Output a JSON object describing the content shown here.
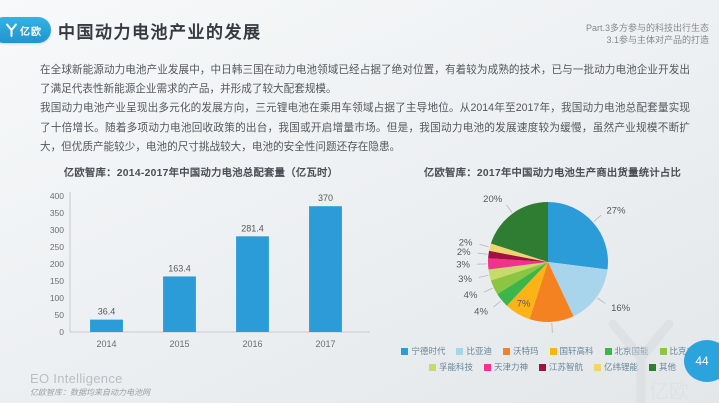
{
  "header": {
    "logo_text": "亿欧",
    "title": "中国动力电池产业的发展",
    "right_line1": "Part.3多方参与的科技出行生态",
    "right_line2": "3.1参与主体对产品的打造"
  },
  "body": {
    "paragraph1": "在全球新能源动力电池产业发展中，中日韩三国在动力电池领域已经占据了绝对位置，有着较为成熟的技术，已与一批动力电池企业开发出了满足代表性新能源企业需求的产品，并形成了较大配套规模。",
    "paragraph2": "我国动力电池产业呈现出多元化的发展方向，三元锂电池在乘用车领域占据了主导地位。从2014年至2017年，我国动力电池总配套量实现了十倍增长。随着多项动力电池回收政策的出台，我国或开启增量市场。但是，我国动力电池的发展速度较为缓慢，虽然产业规模不断扩大，但优质产能较少，电池的尺寸挑战较大，电池的安全性问题还存在隐患。"
  },
  "chart_data": [
    {
      "type": "bar",
      "title": "亿欧智库：2014-2017年中国动力电池总配套量（亿瓦时）",
      "categories": [
        "2014",
        "2015",
        "2016",
        "2017"
      ],
      "values": [
        36.4,
        163.4,
        281.4,
        370
      ],
      "value_labels": [
        "36.4",
        "163.4",
        "281.4",
        "370"
      ],
      "ylim": [
        0,
        400
      ],
      "ytick_step": 50,
      "bar_color": "#2B9CD8",
      "grid": false,
      "xlabel": "",
      "ylabel": ""
    },
    {
      "type": "pie",
      "title": "亿欧智库：2017年中国动力电池生产商出货量统计占比",
      "start_angle_deg": 0,
      "direction": "clockwise",
      "legend_position": "bottom",
      "slices": [
        {
          "label": "宁德时代",
          "value": 27,
          "color": "#2B9CD8",
          "label_pos": "out"
        },
        {
          "label": "比亚迪",
          "value": 16,
          "color": "#A9D5EC",
          "label_pos": "out"
        },
        {
          "label": "沃特玛",
          "value": 12,
          "color": "#F58220",
          "label_pos": "out"
        },
        {
          "label": "国轩高科",
          "value": 7,
          "color": "#FBB316",
          "label_pos": "in"
        },
        {
          "label": "北京国能",
          "value": 4,
          "color": "#3CB54A",
          "label_pos": "out"
        },
        {
          "label": "比克电池",
          "value": 4,
          "color": "#8BC541",
          "label_pos": "out"
        },
        {
          "label": "孚能科技",
          "value": 3,
          "color": "#C6DB6A",
          "label_pos": "out"
        },
        {
          "label": "天津力神",
          "value": 3,
          "color": "#F0338D",
          "label_pos": "out"
        },
        {
          "label": "江苏智航",
          "value": 2,
          "color": "#A31041",
          "label_pos": "out"
        },
        {
          "label": "亿纬锂能",
          "value": 2,
          "color": "#EED56E",
          "label_pos": "out"
        },
        {
          "label": "其他",
          "value": 20,
          "color": "#2E7D33",
          "label_pos": "out"
        }
      ]
    }
  ],
  "footer": {
    "brand": "EO Intelligence",
    "source_note": "亿欧智库：数据均来自动力电池网",
    "page_number": "44"
  },
  "colors": {
    "accent_blue": "#2BA4DE",
    "text_dark": "#53575d",
    "axis_gray": "#c7cbcf"
  }
}
